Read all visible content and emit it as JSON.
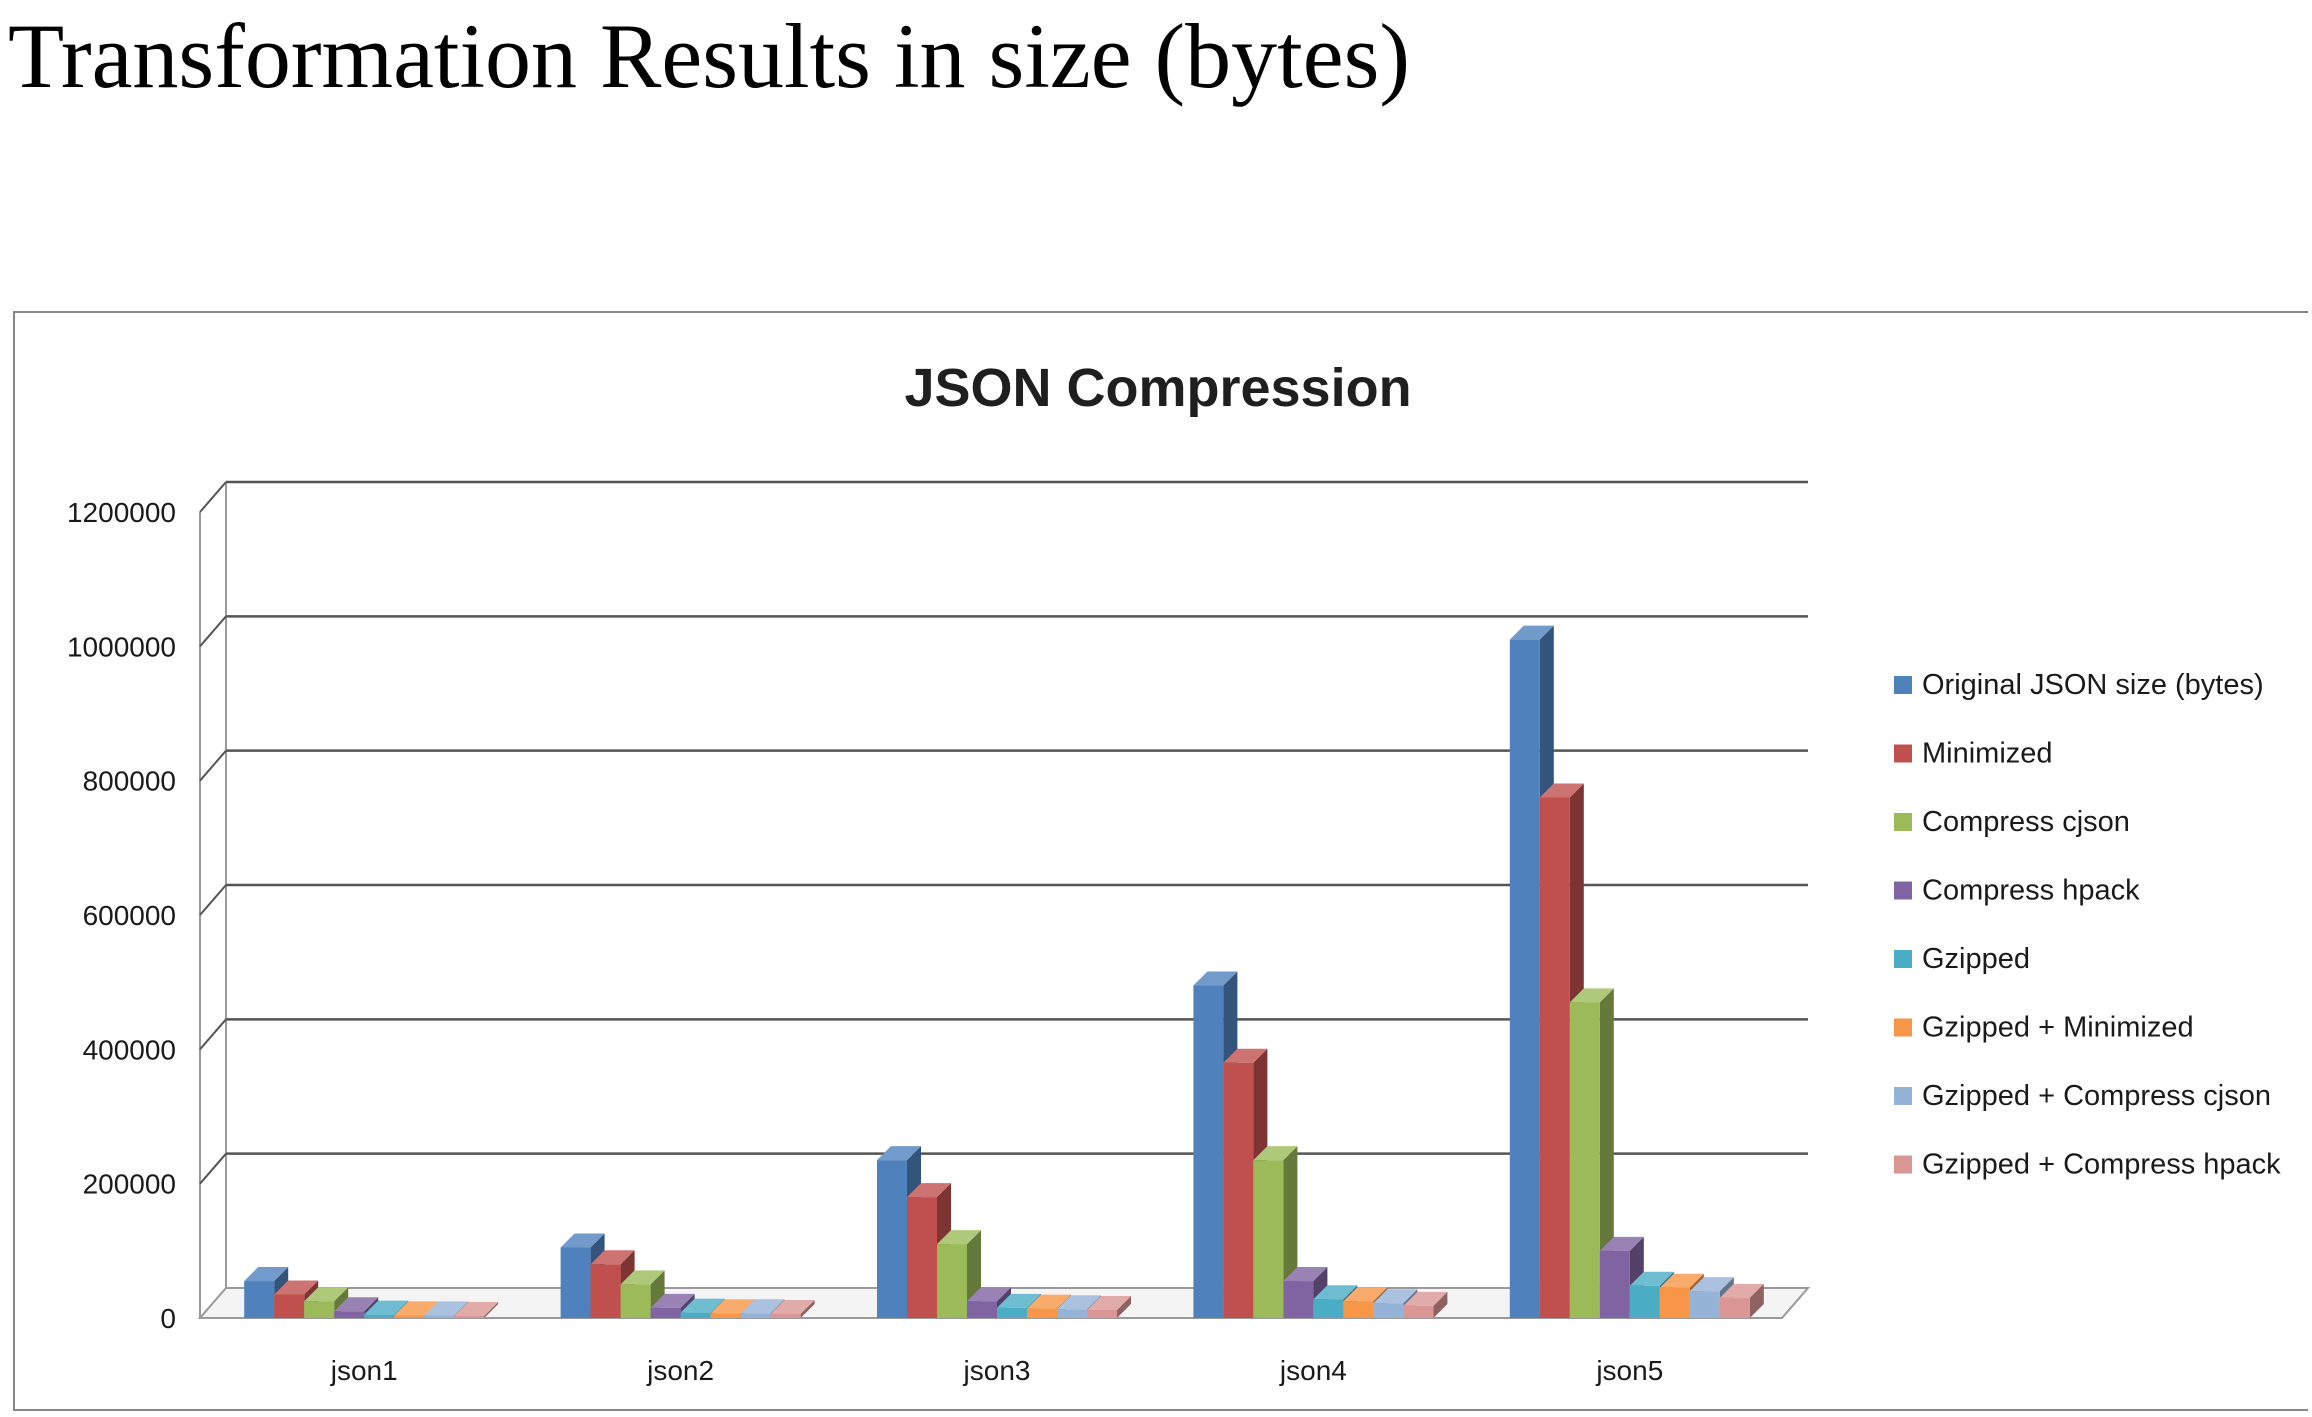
{
  "slide": {
    "title": "Transformation Results in size (bytes)"
  },
  "chart_data": {
    "type": "bar",
    "title": "JSON Compression",
    "xlabel": "",
    "ylabel": "",
    "ylim": [
      0,
      1200000
    ],
    "yticks": [
      "0",
      "200000",
      "400000",
      "600000",
      "800000",
      "1000000",
      "1200000"
    ],
    "grid": true,
    "legend_position": "right",
    "three_d": true,
    "categories": [
      "json1",
      "json2",
      "json3",
      "json4",
      "json5"
    ],
    "series": [
      {
        "name": "Original JSON size (bytes)",
        "color": "#4F81BD",
        "values": [
          55000,
          105000,
          235000,
          495000,
          1010000
        ]
      },
      {
        "name": "Minimized",
        "color": "#C0504D",
        "values": [
          35000,
          80000,
          180000,
          380000,
          775000
        ]
      },
      {
        "name": "Compress cjson",
        "color": "#9BBB59",
        "values": [
          25000,
          50000,
          110000,
          235000,
          470000
        ]
      },
      {
        "name": "Compress hpack",
        "color": "#8064A2",
        "values": [
          10000,
          15000,
          25000,
          55000,
          100000
        ]
      },
      {
        "name": "Gzipped",
        "color": "#4BACC6",
        "values": [
          5000,
          8000,
          15000,
          28000,
          48000
        ]
      },
      {
        "name": "Gzipped + Minimized",
        "color": "#F79646",
        "values": [
          4000,
          7000,
          14000,
          25000,
          45000
        ]
      },
      {
        "name": "Gzipped + Compress cjson",
        "color": "#95B3D7",
        "values": [
          4000,
          7000,
          13000,
          22000,
          40000
        ]
      },
      {
        "name": "Gzipped + Compress hpack",
        "color": "#D99694",
        "values": [
          3000,
          6000,
          12000,
          18000,
          30000
        ]
      }
    ]
  }
}
